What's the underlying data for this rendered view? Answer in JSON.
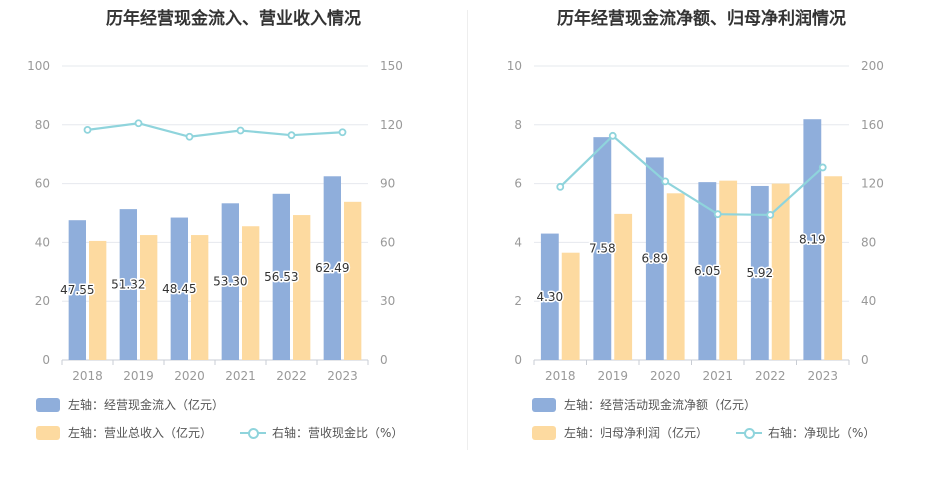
{
  "chart_data": [
    {
      "type": "bar",
      "title": "历年经营现金流入、营业收入情况",
      "categories": [
        "2018",
        "2019",
        "2020",
        "2021",
        "2022",
        "2023"
      ],
      "y_left": {
        "min": 0,
        "max": 100,
        "ticks": [
          "0",
          "20",
          "40",
          "60",
          "80",
          "100"
        ]
      },
      "y_right": {
        "min": 0,
        "max": 150,
        "ticks": [
          "0",
          "30",
          "60",
          "90",
          "120",
          "150"
        ]
      },
      "series": [
        {
          "name": "左轴：经营现金流入（亿元）",
          "axis": "left",
          "kind": "bar",
          "color": "#8faedb",
          "values": [
            47.55,
            51.32,
            48.45,
            53.3,
            56.53,
            62.49
          ],
          "labels": [
            "47.55",
            "51.32",
            "48.45",
            "53.30",
            "56.53",
            "62.49"
          ]
        },
        {
          "name": "左轴：营业总收入（亿元）",
          "axis": "left",
          "kind": "bar",
          "color": "#fddaa0",
          "values": [
            40.5,
            42.5,
            42.5,
            45.5,
            49.3,
            53.8
          ]
        },
        {
          "name": "右轴：营收现金比（%）",
          "axis": "right",
          "kind": "line",
          "color": "#8fd4dc",
          "values": [
            117.4,
            120.8,
            113.9,
            117.1,
            114.7,
            116.2
          ]
        }
      ],
      "grid": true
    },
    {
      "type": "bar",
      "title": "历年经营现金流净额、归母净利润情况",
      "categories": [
        "2018",
        "2019",
        "2020",
        "2021",
        "2022",
        "2023"
      ],
      "y_left": {
        "min": 0,
        "max": 10,
        "ticks": [
          "0",
          "2",
          "4",
          "6",
          "8",
          "10"
        ]
      },
      "y_right": {
        "min": 0,
        "max": 200,
        "ticks": [
          "0",
          "40",
          "80",
          "120",
          "160",
          "200"
        ]
      },
      "series": [
        {
          "name": "左轴：经营活动现金流净额（亿元）",
          "axis": "left",
          "kind": "bar",
          "color": "#8faedb",
          "values": [
            4.3,
            7.58,
            6.89,
            6.05,
            5.92,
            8.19
          ],
          "labels": [
            "4.30",
            "7.58",
            "6.89",
            "6.05",
            "5.92",
            "8.19"
          ]
        },
        {
          "name": "左轴：归母净利润（亿元）",
          "axis": "left",
          "kind": "bar",
          "color": "#fddaa0",
          "values": [
            3.65,
            4.97,
            5.67,
            6.1,
            6.0,
            6.25
          ]
        },
        {
          "name": "右轴：净现比（%）",
          "axis": "right",
          "kind": "line",
          "color": "#8fd4dc",
          "values": [
            117.8,
            152.5,
            121.5,
            99.2,
            98.7,
            131.0
          ]
        }
      ],
      "grid": true
    }
  ]
}
